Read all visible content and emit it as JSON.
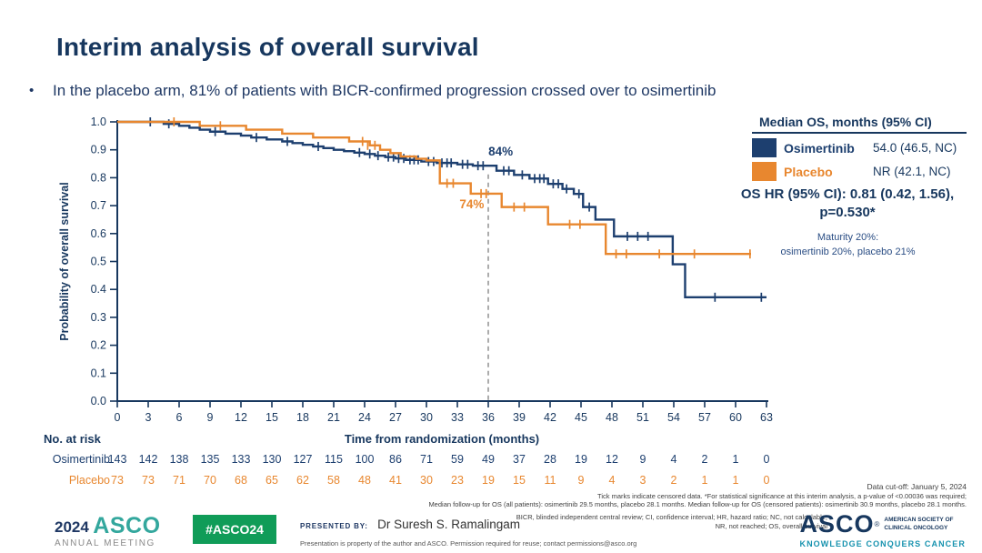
{
  "slide": {
    "title": "Interim analysis of overall survival",
    "bullet_marker": "•",
    "bullet": "In the placebo arm, 81% of patients with BICR-confirmed progression crossed over to osimertinib"
  },
  "legend": {
    "header": "Median OS, months (95% CI)",
    "rows": [
      {
        "name": "Osimertinib",
        "value": "54.0 (46.5, NC)",
        "color": "#1d3f6f"
      },
      {
        "name": "Placebo",
        "value": "NR (42.1, NC)",
        "color": "#e8872f"
      }
    ]
  },
  "stats": {
    "hr_line1": "OS HR (95% CI): 0.81 (0.42, 1.56),",
    "hr_line2": "p=0.530*",
    "maturity_line1": "Maturity 20%:",
    "maturity_line2": "osimertinib 20%, placebo 21%"
  },
  "footnotes": {
    "cutoff": "Data cut-off: January 5, 2024",
    "line1": "Tick marks indicate censored data. *For statistical significance at this interim analysis, a p-value of <0.00036 was required;",
    "line2": "Median follow-up for OS (all patients): osimertinib 29.5 months, placebo 28.1 months. Median follow-up for OS (censored patients): osimertinib 30.9 months, placebo 28.1 months.",
    "abbrev_line1": "BICR, blinded independent central review; CI, confidence interval; HR, hazard ratio; NC, not calculable;",
    "abbrev_line2": "NR, not reached; OS, overall survival"
  },
  "footer": {
    "year": "2024",
    "org": "ASCO",
    "org_sub": "ANNUAL MEETING",
    "hashtag": "#ASCO24",
    "presented_by_label": "PRESENTED BY:",
    "presenter": "Dr Suresh S. Ramalingam",
    "disclaimer": "Presentation is property of the author and ASCO. Permission required for reuse; contact permissions@asco.org",
    "logo_text": "ASCO",
    "logo_reg": "®",
    "logo_side1": "AMERICAN SOCIETY OF",
    "logo_side2": "CLINICAL ONCOLOGY",
    "logo_tagline": "KNOWLEDGE CONQUERS CANCER"
  },
  "chart_data": {
    "type": "line",
    "subtype": "kaplan-meier-step",
    "title": "",
    "xlabel": "Time from randomization (months)",
    "ylabel": "Probability of overall survival",
    "xlim": [
      0,
      63
    ],
    "xstep": 3,
    "ylim": [
      0,
      1
    ],
    "ystep": 0.1,
    "grid": false,
    "axis_color": "#17375e",
    "series": [
      {
        "name": "Osimertinib",
        "color": "#1d3f6f",
        "steps": [
          [
            0,
            1.0
          ],
          [
            3.5,
            1.0
          ],
          [
            4.5,
            0.993
          ],
          [
            6,
            0.986
          ],
          [
            7,
            0.979
          ],
          [
            8,
            0.972
          ],
          [
            9,
            0.965
          ],
          [
            10.5,
            0.958
          ],
          [
            12,
            0.951
          ],
          [
            13,
            0.944
          ],
          [
            14.5,
            0.937
          ],
          [
            16,
            0.93
          ],
          [
            17,
            0.924
          ],
          [
            18,
            0.918
          ],
          [
            19,
            0.912
          ],
          [
            20,
            0.906
          ],
          [
            21,
            0.9
          ],
          [
            22,
            0.895
          ],
          [
            23,
            0.89
          ],
          [
            24,
            0.885
          ],
          [
            25,
            0.879
          ],
          [
            26,
            0.874
          ],
          [
            27,
            0.869
          ],
          [
            28,
            0.864
          ],
          [
            29.5,
            0.858
          ],
          [
            31,
            0.853
          ],
          [
            33,
            0.848
          ],
          [
            34.5,
            0.843
          ],
          [
            36.8,
            0.825
          ],
          [
            38.5,
            0.81
          ],
          [
            40,
            0.797
          ],
          [
            41.8,
            0.778
          ],
          [
            43.2,
            0.76
          ],
          [
            44.3,
            0.742
          ],
          [
            45.2,
            0.695
          ],
          [
            46.4,
            0.65
          ],
          [
            48.2,
            0.59
          ],
          [
            53.9,
            0.49
          ],
          [
            55.1,
            0.372
          ],
          [
            63,
            0.372
          ]
        ],
        "censors": [
          [
            3.2,
            1.0
          ],
          [
            5,
            0.993
          ],
          [
            9.5,
            0.965
          ],
          [
            13.5,
            0.944
          ],
          [
            16.5,
            0.93
          ],
          [
            19.5,
            0.912
          ],
          [
            23.5,
            0.89
          ],
          [
            24.5,
            0.885
          ],
          [
            25.3,
            0.879
          ],
          [
            26.3,
            0.874
          ],
          [
            26.8,
            0.874
          ],
          [
            27.3,
            0.869
          ],
          [
            27.8,
            0.869
          ],
          [
            28.4,
            0.864
          ],
          [
            28.8,
            0.864
          ],
          [
            29.2,
            0.864
          ],
          [
            30.2,
            0.858
          ],
          [
            30.7,
            0.858
          ],
          [
            31.5,
            0.853
          ],
          [
            32,
            0.853
          ],
          [
            32.4,
            0.853
          ],
          [
            33.5,
            0.848
          ],
          [
            34,
            0.848
          ],
          [
            35,
            0.843
          ],
          [
            35.5,
            0.843
          ],
          [
            37.5,
            0.825
          ],
          [
            38,
            0.825
          ],
          [
            39.3,
            0.81
          ],
          [
            40.5,
            0.797
          ],
          [
            41,
            0.797
          ],
          [
            41.4,
            0.797
          ],
          [
            42.3,
            0.778
          ],
          [
            42.8,
            0.778
          ],
          [
            43.6,
            0.76
          ],
          [
            44.8,
            0.742
          ],
          [
            45.8,
            0.695
          ],
          [
            49.5,
            0.59
          ],
          [
            50.5,
            0.59
          ],
          [
            51.5,
            0.59
          ],
          [
            58,
            0.372
          ],
          [
            62.5,
            0.372
          ]
        ]
      },
      {
        "name": "Placebo",
        "color": "#e8872f",
        "steps": [
          [
            0,
            1.0
          ],
          [
            7,
            1.0
          ],
          [
            8,
            0.986
          ],
          [
            11.5,
            0.986
          ],
          [
            12.5,
            0.972
          ],
          [
            15,
            0.972
          ],
          [
            16,
            0.958
          ],
          [
            18,
            0.958
          ],
          [
            19,
            0.944
          ],
          [
            21.5,
            0.944
          ],
          [
            22.5,
            0.93
          ],
          [
            24.5,
            0.916
          ],
          [
            25.5,
            0.9
          ],
          [
            26.5,
            0.888
          ],
          [
            27.5,
            0.876
          ],
          [
            29,
            0.868
          ],
          [
            30,
            0.862
          ],
          [
            31.3,
            0.78
          ],
          [
            34.3,
            0.743
          ],
          [
            37.3,
            0.695
          ],
          [
            41.8,
            0.633
          ],
          [
            47.4,
            0.527
          ],
          [
            61.5,
            0.527
          ]
        ],
        "censors": [
          [
            5.5,
            1.0
          ],
          [
            10,
            0.986
          ],
          [
            23.8,
            0.93
          ],
          [
            24.3,
            0.916
          ],
          [
            25,
            0.916
          ],
          [
            32,
            0.78
          ],
          [
            32.6,
            0.78
          ],
          [
            35.3,
            0.743
          ],
          [
            35.8,
            0.743
          ],
          [
            38.5,
            0.695
          ],
          [
            39.5,
            0.695
          ],
          [
            43.9,
            0.633
          ],
          [
            44.9,
            0.633
          ],
          [
            48.4,
            0.527
          ],
          [
            49.4,
            0.527
          ],
          [
            52.6,
            0.527
          ],
          [
            56,
            0.527
          ],
          [
            61.4,
            0.527
          ]
        ]
      }
    ],
    "annotations": {
      "dashed_line_x": 36,
      "dashed_top_s": 0.812,
      "labels": [
        {
          "text": "84%",
          "t": 37.2,
          "s": 0.879,
          "color": "#1d3f6f"
        },
        {
          "text": "74%",
          "t": 34.4,
          "s": 0.69,
          "color": "#e8872f"
        }
      ]
    },
    "risk_table": {
      "label": "No. at risk",
      "rows": [
        {
          "name": "Osimertinib",
          "color": "#1d3f6f",
          "values": [
            143,
            142,
            138,
            135,
            133,
            130,
            127,
            115,
            100,
            86,
            71,
            59,
            49,
            37,
            28,
            19,
            12,
            9,
            4,
            2,
            1,
            0
          ]
        },
        {
          "name": "Placebo",
          "color": "#e8872f",
          "values": [
            73,
            73,
            71,
            70,
            68,
            65,
            62,
            58,
            48,
            41,
            30,
            23,
            19,
            15,
            11,
            9,
            4,
            3,
            2,
            1,
            1,
            0
          ]
        }
      ]
    }
  }
}
